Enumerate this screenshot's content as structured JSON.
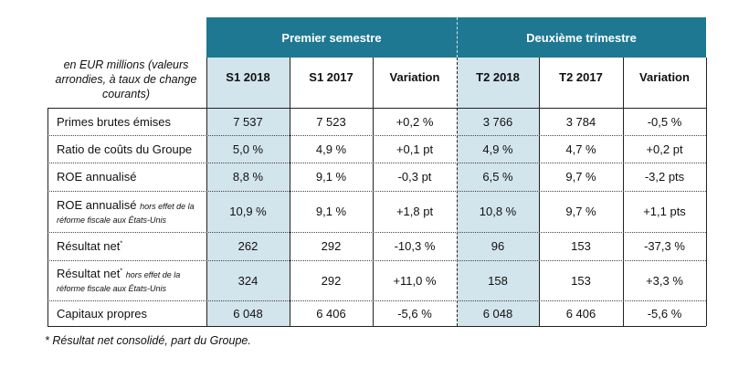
{
  "groups": {
    "first": "Premier semestre",
    "second": "Deuxième trimestre"
  },
  "description": "en EUR millions (valeurs arrondies, à taux de change courants)",
  "columns": [
    "S1 2018",
    "S1 2017",
    "Variation",
    "T2 2018",
    "T2 2017",
    "Variation"
  ],
  "rows": [
    {
      "label": "Primes brutes émises",
      "sup": "",
      "sub": "",
      "values": [
        "7 537",
        "7 523",
        "+0,2 %",
        "3 766",
        "3 784",
        "-0,5 %"
      ]
    },
    {
      "label": "Ratio de coûts du Groupe",
      "sup": "",
      "sub": "",
      "values": [
        "5,0 %",
        "4,9 %",
        "+0,1 pt",
        "4,9 %",
        "4,7 %",
        "+0,2 pt"
      ]
    },
    {
      "label": "ROE annualisé",
      "sup": "",
      "sub": "",
      "values": [
        "8,8 %",
        "9,1 %",
        "-0,3 pt",
        "6,5 %",
        "9,7 %",
        "-3,2 pts"
      ]
    },
    {
      "label": "ROE annualisé",
      "sup": "",
      "sub": "hors effet de la réforme fiscale aux États-Unis",
      "values": [
        "10,9 %",
        "9,1 %",
        "+1,8 pt",
        "10,8 %",
        "9,7 %",
        "+1,1 pts"
      ]
    },
    {
      "label": "Résultat net",
      "sup": "*",
      "sub": "",
      "values": [
        "262",
        "292",
        "-10,3 %",
        "96",
        "153",
        "-37,3 %"
      ]
    },
    {
      "label": "Résultat net",
      "sup": "*",
      "sub": "hors effet de la réforme fiscale aux États-Unis",
      "values": [
        "324",
        "292",
        "+11,0 %",
        "158",
        "153",
        "+3,3 %"
      ]
    },
    {
      "label": "Capitaux propres",
      "sup": "",
      "sub": "",
      "values": [
        "6 048",
        "6 406",
        "-5,6 %",
        "6 048",
        "6 406",
        "-5,6 %"
      ]
    }
  ],
  "footnote": "* Résultat net consolidé, part du Groupe."
}
